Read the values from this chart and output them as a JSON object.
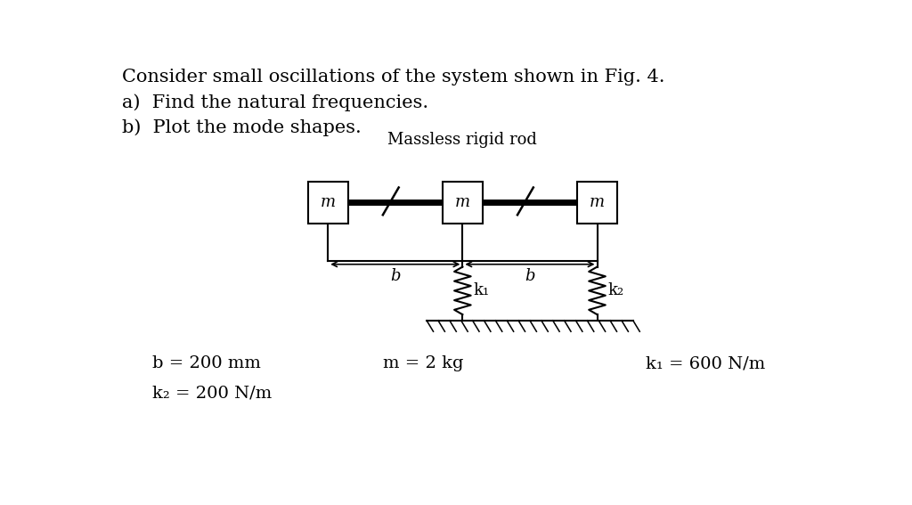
{
  "title_line1": "Consider small oscillations of the system shown in Fig. 4.",
  "title_line2": "a)  Find the natural frequencies.",
  "title_line3": "b)  Plot the mode shapes.",
  "label_rigid_rod": "Massless rigid rod",
  "label_b1": "b",
  "label_b2": "b",
  "label_m1": "m",
  "label_m2": "m",
  "label_m3": "m",
  "label_k1": "k₁",
  "label_k2": "k₂",
  "param_b": "b = 200 mm",
  "param_m": "m = 2 kg",
  "param_k1": "k₁ = 600 N/m",
  "param_k2": "k₂ = 200 N/m",
  "bg_color": "#ffffff",
  "line_color": "#000000",
  "font_size_title": 15,
  "font_size_label": 13,
  "font_size_param": 14
}
